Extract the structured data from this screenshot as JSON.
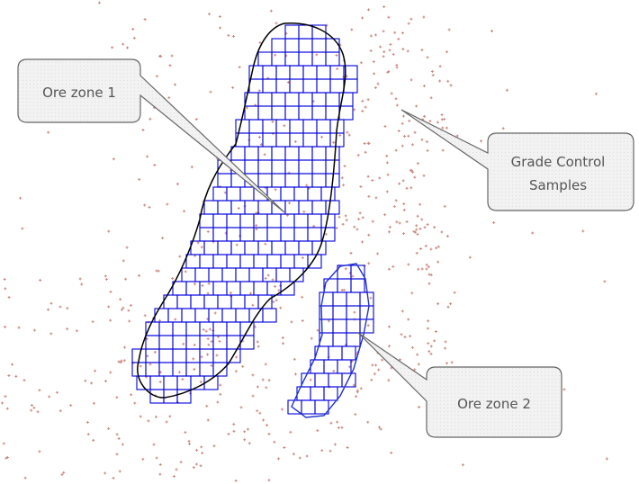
{
  "callouts": {
    "ore_zone_1": {
      "label": "Ore zone 1"
    },
    "grade_control": {
      "line1": "Grade Control",
      "line2": "Samples"
    },
    "ore_zone_2": {
      "label": "Ore zone 2"
    }
  },
  "colors": {
    "sample": "#c98a82",
    "grid": "#0000dd",
    "outline": "#000000",
    "zone2_outline": "#2233cc",
    "callout_fill": "#f2f2f2",
    "callout_stroke": "#666666"
  }
}
